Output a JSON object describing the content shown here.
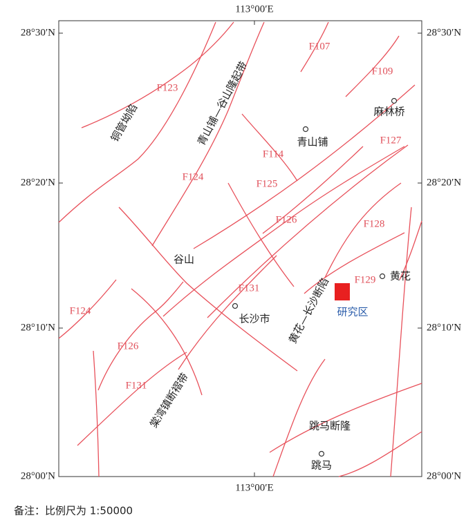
{
  "frame": {
    "lon_top": "113°00′E",
    "lon_bottom": "113°00′E",
    "lat": [
      "28°30′N",
      "28°20′N",
      "28°10′N",
      "28°00′N"
    ]
  },
  "faults": [
    "F107",
    "F109",
    "F123",
    "F114",
    "F127",
    "F124",
    "F125",
    "F126",
    "F128",
    "F131",
    "F129",
    "F124",
    "F126",
    "F131"
  ],
  "regions": [
    "铜管坳陷",
    "青山铺—谷山隆起带",
    "黄花—长沙断陷",
    "棠湾镇断褶带",
    "跳马断隆"
  ],
  "towns": [
    "青山铺",
    "麻林桥",
    "谷山",
    "长沙市",
    "黄花",
    "跳马"
  ],
  "study_area": "研究区",
  "note": "备注：比例尺为 1:50000"
}
